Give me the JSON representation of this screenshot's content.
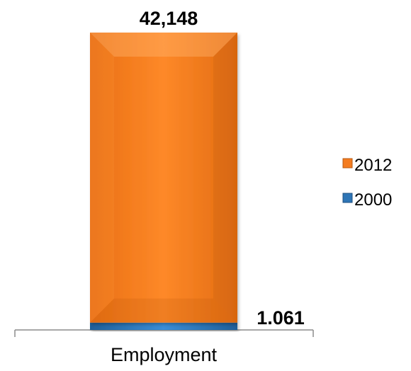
{
  "chart_data": {
    "type": "bar",
    "stacked": true,
    "categories": [
      "Employment"
    ],
    "series": [
      {
        "name": "2012",
        "values": [
          42148
        ],
        "value_label": "42,148",
        "color": "#F47C20"
      },
      {
        "name": "2000",
        "values": [
          1061
        ],
        "value_label": "1.061",
        "color": "#2E75B6"
      }
    ],
    "legend": {
      "position": "right",
      "items": [
        {
          "name": "2012",
          "color": "#F47C20"
        },
        {
          "name": "2000",
          "color": "#2E75B6"
        }
      ]
    },
    "ylim": [
      0,
      43209
    ],
    "grid": false,
    "axis_line_color": "#8C8C8C"
  }
}
